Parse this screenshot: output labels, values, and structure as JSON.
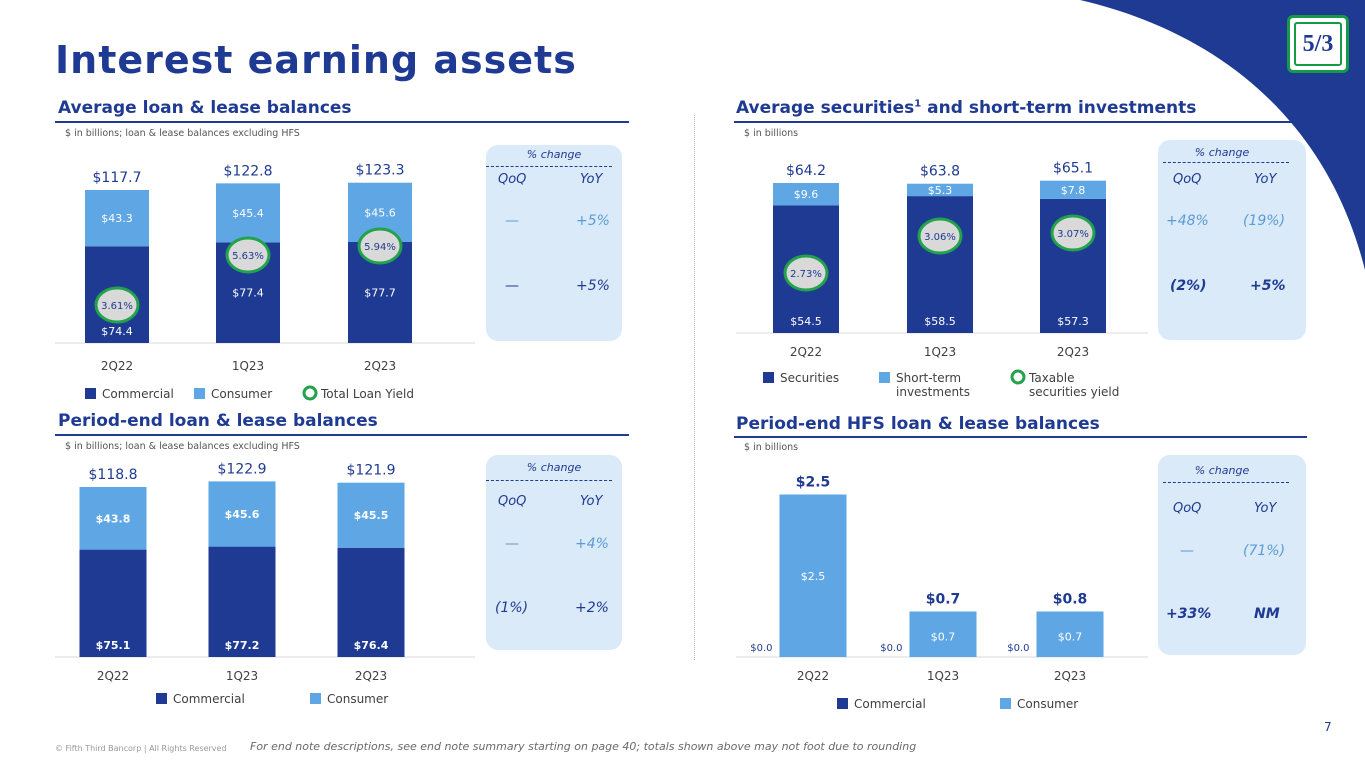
{
  "page": {
    "title": "Interest earning assets",
    "logo_text": "5/3",
    "footer_copyright": "© Fifth Third Bancorp | All Rights Reserved",
    "footer_note": "For end note descriptions, see end note summary starting on page 40; totals shown above may not foot due to rounding",
    "page_number": "7"
  },
  "colors": {
    "navy": "#1f3a93",
    "light_blue": "#5ea7e4",
    "green": "#21a24b",
    "panel": "#dbeaf8"
  },
  "sections": {
    "avg_loans": {
      "title": "Average loan & lease balances",
      "subtitle": "$ in billions; loan & lease balances excluding HFS"
    },
    "avg_securities": {
      "title": "Average securities",
      "title_sup": "1",
      "title_rest": " and short-term investments",
      "subtitle": "$ in billions"
    },
    "pe_loans": {
      "title": "Period-end loan & lease balances",
      "subtitle": "$ in billions; loan & lease balances excluding HFS"
    },
    "pe_hfs": {
      "title": "Period-end HFS loan & lease balances",
      "subtitle": "$ in billions"
    }
  },
  "pct_change": {
    "avg_loans": {
      "title": "% change",
      "qoq_label": "QoQ",
      "yoy_label": "YoY",
      "rows": [
        {
          "qoq": "—",
          "yoy": "+5%"
        },
        {
          "qoq": "—",
          "yoy": "+5%"
        }
      ]
    },
    "avg_securities": {
      "title": "% change",
      "qoq_label": "QoQ",
      "yoy_label": "YoY",
      "rows": [
        {
          "qoq": "+48%",
          "yoy": "(19%)"
        },
        {
          "qoq": "(2%)",
          "yoy": "+5%"
        }
      ]
    },
    "pe_loans": {
      "title": "% change",
      "qoq_label": "QoQ",
      "yoy_label": "YoY",
      "rows": [
        {
          "qoq": "—",
          "yoy": "+4%"
        },
        {
          "qoq": "(1%)",
          "yoy": "+2%"
        }
      ]
    },
    "pe_hfs": {
      "title": "% change",
      "qoq_label": "QoQ",
      "yoy_label": "YoY",
      "rows": [
        {
          "qoq": "—",
          "yoy": "(71%)"
        },
        {
          "qoq": "+33%",
          "yoy": "NM"
        }
      ]
    }
  },
  "chart_data": [
    {
      "id": "avg_loans",
      "type": "bar",
      "stacked": true,
      "categories": [
        "2Q22",
        "1Q23",
        "2Q23"
      ],
      "series": [
        {
          "name": "Commercial",
          "values": [
            74.4,
            77.4,
            77.7
          ],
          "labels": [
            "$74.4",
            "$77.4",
            "$77.7"
          ]
        },
        {
          "name": "Consumer",
          "values": [
            43.3,
            45.4,
            45.6
          ],
          "labels": [
            "$43.3",
            "$45.4",
            "$45.6"
          ]
        }
      ],
      "totals": [
        "$117.7",
        "$122.8",
        "$123.3"
      ],
      "overlay": {
        "name": "Total Loan Yield",
        "values": [
          3.61,
          5.63,
          5.94
        ],
        "labels": [
          "3.61%",
          "5.63%",
          "5.94%"
        ]
      },
      "legend": [
        "Commercial",
        "Consumer",
        "Total Loan Yield"
      ]
    },
    {
      "id": "avg_securities",
      "type": "bar",
      "stacked": true,
      "categories": [
        "2Q22",
        "1Q23",
        "2Q23"
      ],
      "series": [
        {
          "name": "Securities",
          "values": [
            54.5,
            58.5,
            57.3
          ],
          "labels": [
            "$54.5",
            "$58.5",
            "$57.3"
          ]
        },
        {
          "name": "Short-term investments",
          "values": [
            9.6,
            5.3,
            7.8
          ],
          "labels": [
            "$9.6",
            "$5.3",
            "$7.8"
          ]
        }
      ],
      "totals": [
        "$64.2",
        "$63.8",
        "$65.1"
      ],
      "overlay": {
        "name": "Taxable securities yield",
        "values": [
          2.73,
          3.06,
          3.07
        ],
        "labels": [
          "2.73%",
          "3.06%",
          "3.07%"
        ]
      },
      "legend": [
        "Securities",
        "Short-term investments",
        "Taxable securities yield"
      ]
    },
    {
      "id": "pe_loans",
      "type": "bar",
      "stacked": true,
      "categories": [
        "2Q22",
        "1Q23",
        "2Q23"
      ],
      "series": [
        {
          "name": "Commercial",
          "values": [
            75.1,
            77.2,
            76.4
          ],
          "labels": [
            "$75.1",
            "$77.2",
            "$76.4"
          ]
        },
        {
          "name": "Consumer",
          "values": [
            43.8,
            45.6,
            45.5
          ],
          "labels": [
            "$43.8",
            "$45.6",
            "$45.5"
          ]
        }
      ],
      "totals": [
        "$118.8",
        "$122.9",
        "$121.9"
      ],
      "legend": [
        "Commercial",
        "Consumer"
      ]
    },
    {
      "id": "pe_hfs",
      "type": "bar",
      "stacked": true,
      "categories": [
        "2Q22",
        "1Q23",
        "2Q23"
      ],
      "series": [
        {
          "name": "Commercial",
          "values": [
            0.0,
            0.0,
            0.0
          ],
          "labels": [
            "$0.0",
            "$0.0",
            "$0.0"
          ]
        },
        {
          "name": "Consumer",
          "values": [
            2.5,
            0.7,
            0.7
          ],
          "labels": [
            "$2.5",
            "$0.7",
            "$0.7"
          ]
        }
      ],
      "totals": [
        "$2.5",
        "$0.7",
        "$0.8"
      ],
      "legend": [
        "Commercial",
        "Consumer"
      ]
    }
  ]
}
